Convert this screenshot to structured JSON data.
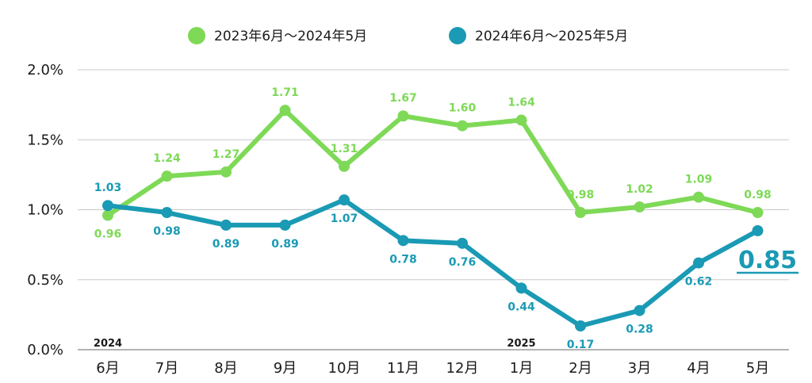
{
  "chart_data": {
    "type": "line",
    "title": "",
    "xlabel": "",
    "ylabel": "",
    "categories": [
      "6月",
      "7月",
      "8月",
      "9月",
      "10月",
      "11月",
      "12月",
      "1月",
      "2月",
      "3月",
      "4月",
      "5月"
    ],
    "year_markers": [
      {
        "category_index": 0,
        "label": "2024"
      },
      {
        "category_index": 7,
        "label": "2025"
      }
    ],
    "y_ticks": [
      "0.0%",
      "0.5%",
      "1.0%",
      "1.5%",
      "2.0%"
    ],
    "y_tick_values": [
      0,
      0.5,
      1.0,
      1.5,
      2.0
    ],
    "ylim": [
      0,
      2.0
    ],
    "grid": true,
    "legend_position": "top-center",
    "series": [
      {
        "name": "2023年6月～2024年5月",
        "color": "#7ed957",
        "values": [
          0.96,
          1.24,
          1.27,
          1.71,
          1.31,
          1.67,
          1.6,
          1.64,
          0.98,
          1.02,
          1.09,
          0.98
        ],
        "labels": [
          "0.96",
          "1.24",
          "1.27",
          "1.71",
          "1.31",
          "1.67",
          "1.60",
          "1.64",
          "0.98",
          "1.02",
          "1.09",
          "0.98"
        ],
        "label_placement": [
          "below",
          "above",
          "above",
          "above",
          "above",
          "above",
          "above",
          "above",
          "above",
          "above",
          "above",
          "above"
        ]
      },
      {
        "name": "2024年6月～2025年5月",
        "color": "#1a9ab4",
        "values": [
          1.03,
          0.98,
          0.89,
          0.89,
          1.07,
          0.78,
          0.76,
          0.44,
          0.17,
          0.28,
          0.62,
          0.85
        ],
        "labels": [
          "1.03",
          "0.98",
          "0.89",
          "0.89",
          "1.07",
          "0.78",
          "0.76",
          "0.44",
          "0.17",
          "0.28",
          "0.62",
          "0.85"
        ],
        "label_placement": [
          "above",
          "below",
          "below",
          "below",
          "below",
          "below",
          "below",
          "below",
          "below",
          "below",
          "below",
          "highlight"
        ]
      }
    ]
  }
}
